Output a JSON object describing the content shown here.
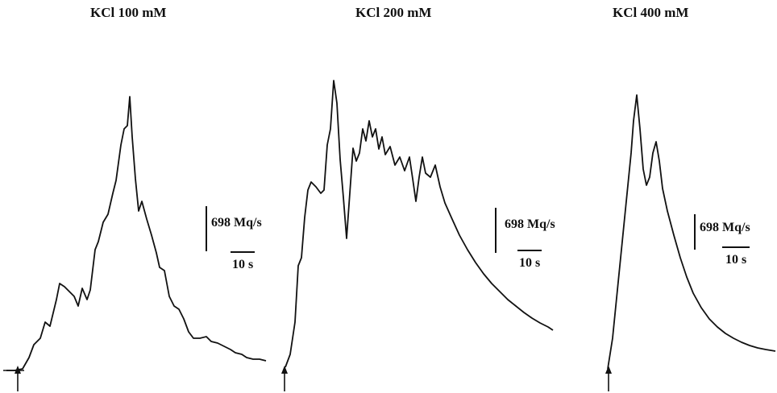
{
  "chart_data": [
    {
      "type": "line",
      "title": "KCl 100 mM",
      "scale_bar": {
        "y_label": "698 Mq/s",
        "x_label": "10 s"
      },
      "points": [
        [
          8,
          460
        ],
        [
          18,
          460
        ],
        [
          28,
          458
        ],
        [
          36,
          444
        ],
        [
          42,
          428
        ],
        [
          50,
          420
        ],
        [
          56,
          400
        ],
        [
          62,
          405
        ],
        [
          70,
          372
        ],
        [
          74,
          352
        ],
        [
          80,
          356
        ],
        [
          86,
          362
        ],
        [
          92,
          368
        ],
        [
          97,
          380
        ],
        [
          102,
          358
        ],
        [
          108,
          372
        ],
        [
          112,
          360
        ],
        [
          118,
          310
        ],
        [
          122,
          300
        ],
        [
          128,
          276
        ],
        [
          134,
          266
        ],
        [
          140,
          240
        ],
        [
          144,
          224
        ],
        [
          150,
          180
        ],
        [
          154,
          160
        ],
        [
          158,
          156
        ],
        [
          161,
          120
        ],
        [
          164,
          170
        ],
        [
          168,
          222
        ],
        [
          172,
          262
        ],
        [
          176,
          250
        ],
        [
          182,
          272
        ],
        [
          188,
          292
        ],
        [
          194,
          314
        ],
        [
          198,
          332
        ],
        [
          204,
          336
        ],
        [
          210,
          368
        ],
        [
          216,
          380
        ],
        [
          222,
          384
        ],
        [
          228,
          396
        ],
        [
          234,
          412
        ],
        [
          240,
          420
        ],
        [
          248,
          420
        ],
        [
          256,
          418
        ],
        [
          262,
          424
        ],
        [
          270,
          426
        ],
        [
          278,
          430
        ],
        [
          286,
          434
        ],
        [
          292,
          438
        ],
        [
          300,
          440
        ],
        [
          306,
          444
        ],
        [
          314,
          446
        ],
        [
          322,
          446
        ],
        [
          330,
          448
        ]
      ],
      "arrow_x": 22
    },
    {
      "type": "line",
      "title": "KCl 200 mM",
      "scale_bar": {
        "y_label": "698 Mq/s",
        "x_label": "10 s"
      },
      "points": [
        [
          354,
          456
        ],
        [
          360,
          440
        ],
        [
          366,
          400
        ],
        [
          370,
          330
        ],
        [
          374,
          320
        ],
        [
          378,
          270
        ],
        [
          382,
          236
        ],
        [
          386,
          226
        ],
        [
          392,
          232
        ],
        [
          398,
          240
        ],
        [
          402,
          236
        ],
        [
          406,
          180
        ],
        [
          410,
          160
        ],
        [
          414,
          100
        ],
        [
          418,
          128
        ],
        [
          422,
          198
        ],
        [
          426,
          245
        ],
        [
          430,
          296
        ],
        [
          434,
          240
        ],
        [
          438,
          184
        ],
        [
          442,
          200
        ],
        [
          446,
          190
        ],
        [
          450,
          160
        ],
        [
          454,
          175
        ],
        [
          458,
          150
        ],
        [
          462,
          170
        ],
        [
          466,
          160
        ],
        [
          470,
          185
        ],
        [
          474,
          170
        ],
        [
          478,
          192
        ],
        [
          484,
          182
        ],
        [
          490,
          205
        ],
        [
          496,
          195
        ],
        [
          502,
          212
        ],
        [
          508,
          195
        ],
        [
          512,
          222
        ],
        [
          516,
          250
        ],
        [
          520,
          220
        ],
        [
          524,
          195
        ],
        [
          528,
          215
        ],
        [
          534,
          220
        ],
        [
          540,
          205
        ],
        [
          546,
          232
        ],
        [
          552,
          252
        ],
        [
          560,
          270
        ],
        [
          570,
          292
        ],
        [
          580,
          310
        ],
        [
          590,
          326
        ],
        [
          600,
          340
        ],
        [
          610,
          352
        ],
        [
          620,
          362
        ],
        [
          630,
          372
        ],
        [
          640,
          380
        ],
        [
          650,
          388
        ],
        [
          660,
          395
        ],
        [
          670,
          401
        ],
        [
          680,
          406
        ],
        [
          686,
          410
        ]
      ],
      "arrow_x": 353
    },
    {
      "type": "line",
      "title": "KCl 400 mM",
      "scale_bar": {
        "y_label": "698 Mq/s",
        "x_label": "10 s"
      },
      "points": [
        [
          754,
          458
        ],
        [
          760,
          420
        ],
        [
          766,
          360
        ],
        [
          772,
          300
        ],
        [
          778,
          240
        ],
        [
          783,
          190
        ],
        [
          786,
          150
        ],
        [
          790,
          118
        ],
        [
          794,
          160
        ],
        [
          798,
          210
        ],
        [
          802,
          230
        ],
        [
          806,
          220
        ],
        [
          810,
          190
        ],
        [
          814,
          176
        ],
        [
          818,
          200
        ],
        [
          822,
          234
        ],
        [
          828,
          262
        ],
        [
          836,
          292
        ],
        [
          844,
          320
        ],
        [
          852,
          344
        ],
        [
          860,
          364
        ],
        [
          870,
          382
        ],
        [
          880,
          396
        ],
        [
          890,
          406
        ],
        [
          900,
          414
        ],
        [
          910,
          420
        ],
        [
          920,
          425
        ],
        [
          930,
          429
        ],
        [
          940,
          432
        ],
        [
          950,
          434
        ],
        [
          962,
          436
        ]
      ],
      "arrow_x": 755
    }
  ]
}
